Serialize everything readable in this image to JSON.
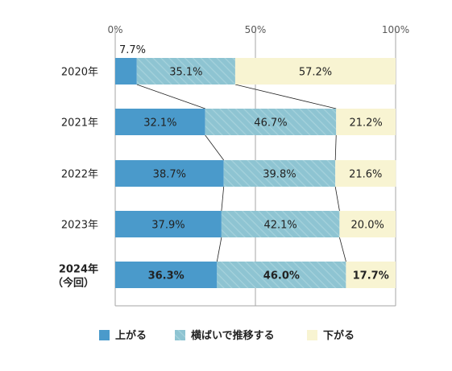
{
  "chart_data": {
    "type": "bar",
    "orientation": "horizontal",
    "stacked": "percent",
    "categories": [
      "2020年",
      "2021年",
      "2022年",
      "2023年",
      "2024年\n（今回）"
    ],
    "highlight_category": 4,
    "series": [
      {
        "name": "上がる",
        "values": [
          7.7,
          32.1,
          38.7,
          37.9,
          36.3
        ],
        "labels": [
          "7.7%",
          "32.1%",
          "38.7%",
          "37.9%",
          "36.3%"
        ],
        "color": "#4a9acb"
      },
      {
        "name": "横ばいで推移する",
        "values": [
          35.1,
          46.7,
          39.8,
          42.1,
          46.0
        ],
        "labels": [
          "35.1%",
          "46.7%",
          "39.8%",
          "42.1%",
          "46.0%"
        ],
        "color": "#8ec4d2"
      },
      {
        "name": "下がる",
        "values": [
          57.2,
          21.2,
          21.6,
          20.0,
          17.7
        ],
        "labels": [
          "57.2%",
          "21.2%",
          "21.6%",
          "20.0%",
          "17.7%"
        ],
        "color": "#f8f4d2"
      }
    ],
    "xlim": [
      0,
      100
    ],
    "x_ticks": [
      0,
      50,
      100
    ],
    "x_tick_labels": [
      "0%",
      "50%",
      "100%"
    ],
    "gridlines": true,
    "connector_lines": true,
    "legend_position": "bottom"
  }
}
